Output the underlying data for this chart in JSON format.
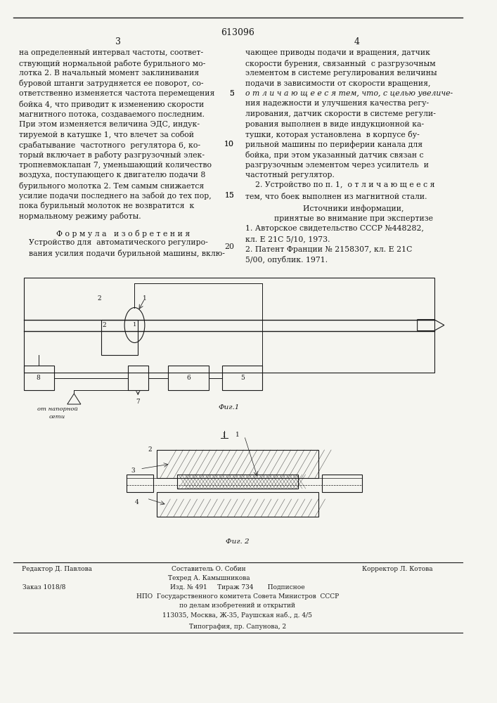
{
  "page_number_center": "613096",
  "col_left_number": "3",
  "col_right_number": "4",
  "bg_color": "#f5f5f0",
  "text_color": "#1a1a1a",
  "left_col_text": [
    "на определенный интервал частоты, соответ-",
    "ствующий нормальной работе бурильного мо-",
    "лотка 2. В начальный момент заклинивания",
    "буровой штанги затрудняется ее поворот, со-",
    "ответственно изменяется частота перемещения",
    "бойка 4, что приводит к изменению скорости",
    "магнитного потока, создаваемого последним.",
    "При этом изменяется величина ЭДС, индук-",
    "тируемой в катушке 1, что влечет за собой",
    "срабатывание  частотного  регулятора 6, ко-",
    "торый включает в работу разгрузочный элек-",
    "тропневмоклапан 7, уменьшающий количество",
    "воздуха, поступающего к двигателю подачи 8",
    "бурильного молотка 2. Тем самым снижается",
    "усилие подачи последнего на забой до тех пор,",
    "пока бурильный молоток не возвратится  к",
    "нормальному режиму работы."
  ],
  "formula_header": "Ф о р м у л а   и з о б р е т е н и я",
  "formula_text": [
    "Устройство для  автоматического регулиро-",
    "вания усилия подачи бурильной машины, вклю-"
  ],
  "right_col_text": [
    "чающее приводы подачи и вращения, датчик",
    "скорости бурения, связанный  с разгрузочным",
    "элементом в системе регулирования величины",
    "подачи в зависимости от скорости вращения,"
  ],
  "claim1_italic": "о т л и ч а ю щ е е с я тем, что, с целью увеличе-",
  "claim1_text": [
    "ния надежности и улучшения качества регу-",
    "лирования, датчик скорости в системе регули-",
    "рования выполнен в виде индукционной ка-",
    "тушки, которая установлена  в корпусе бу-",
    "рильной машины по периферии канала для",
    "бойка, при этом указанный датчик связан с",
    "разгрузочным элементом через усилитель  и",
    "частотный регулятор."
  ],
  "claim2_header": "2. Устройство по п. 1,",
  "claim2_italic": "о т л и ч а ю щ е е с я",
  "claim2_text": "тем, что боек выполнен из магнитной стали.",
  "sources_header": "Источники информации,",
  "sources_subheader": "принятые во внимание при экспертизе",
  "source1": "1. Авторское свидетельство СССР №448282,",
  "source1b": "кл. Е 21С 5/10, 1973.",
  "source2": "2. Патент Франции № 2158307, кл. Е 21С",
  "source2b": "5/00, опублик. 1971.",
  "fig1_label": "Фиг.1",
  "fig2_label": "Фиг. 2",
  "bottom_line1_left": "Редактор Д. Павлова",
  "bottom_line1_center": "Составитель О. Собин",
  "bottom_line1_center2": "Техред А. Камышникова",
  "bottom_line1_right": "Корректор Л. Котова",
  "bottom_line2": "Заказ 1018/8",
  "bottom_line2b": "Изд. № 491     Тираж 734       Подписное",
  "bottom_line3": "НПО  Государственного комитета Совета Министров  СССР",
  "bottom_line3b": "по делам изобретений и открытий",
  "bottom_line3c": "113035, Москва, Ж-35, Раушская наб., д. 4/5",
  "bottom_line4": "Типография, пр. Сапунова, 2",
  "line_numbers_left": [
    "5",
    "10",
    "15",
    "20"
  ],
  "line_numbers_right": [
    "5",
    "10",
    "15"
  ]
}
